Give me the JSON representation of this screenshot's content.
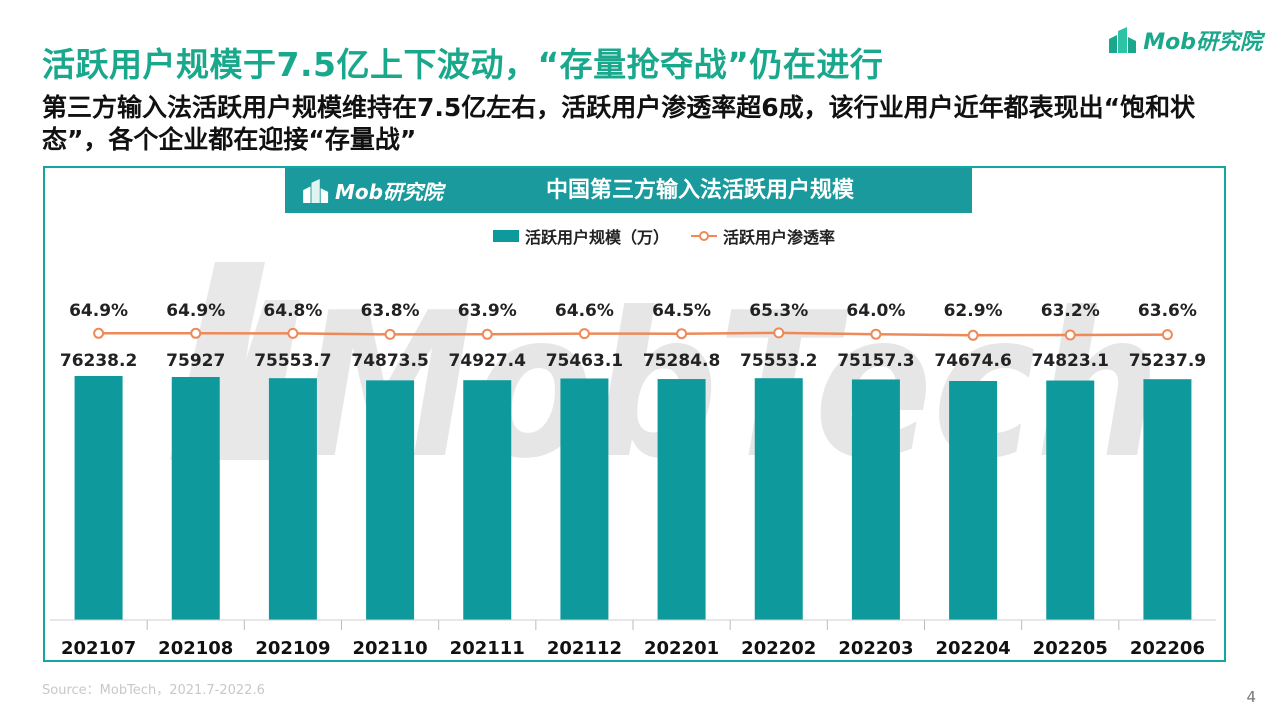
{
  "header": {
    "title": "活跃用户规模于7.5亿上下波动，“存量抢夺战”仍在进行",
    "subtitle": "第三方输入法活跃用户规模维持在7.5亿左右，活跃用户渗透率超6成，该行业用户近年都表现出“饱和状态”，各个企业都在迎接“存量战”",
    "logo_text": "Mob研究院"
  },
  "banner": {
    "logo_text": "Mob研究院",
    "title": "中国第三方输入法活跃用户规模"
  },
  "watermark": "MobTech",
  "colors": {
    "accent": "#1aa88c",
    "bar": "#0e9a9d",
    "line": "#ee8a5a",
    "banner": "#1a9a9c",
    "frame": "#14a6a3"
  },
  "chart_data": {
    "type": "bar",
    "categories": [
      "202107",
      "202108",
      "202109",
      "202110",
      "202111",
      "202112",
      "202201",
      "202202",
      "202203",
      "202204",
      "202205",
      "202206"
    ],
    "series": [
      {
        "name": "活跃用户规模（万）",
        "type": "bar",
        "values": [
          76238.2,
          75927,
          75553.7,
          74873.5,
          74927.4,
          75463.1,
          75284.8,
          75553.2,
          75157.3,
          74674.6,
          74823.1,
          75237.9
        ],
        "labels": [
          "76238.2",
          "75927",
          "75553.7",
          "74873.5",
          "74927.4",
          "75463.1",
          "75284.8",
          "75553.2",
          "75157.3",
          "74674.6",
          "74823.1",
          "75237.9"
        ]
      },
      {
        "name": "活跃用户渗透率",
        "type": "line",
        "values": [
          64.9,
          64.9,
          64.8,
          63.8,
          63.9,
          64.6,
          64.5,
          65.3,
          64.0,
          62.9,
          63.2,
          63.6
        ],
        "labels": [
          "64.9%",
          "64.9%",
          "64.8%",
          "63.8%",
          "63.9%",
          "64.6%",
          "64.5%",
          "65.3%",
          "64.0%",
          "62.9%",
          "63.2%",
          "63.6%"
        ]
      }
    ],
    "legend_position": "top-center",
    "grid": false
  },
  "footer": {
    "source": "Source：MobTech，2021.7-2022.6",
    "page_number": "4"
  }
}
